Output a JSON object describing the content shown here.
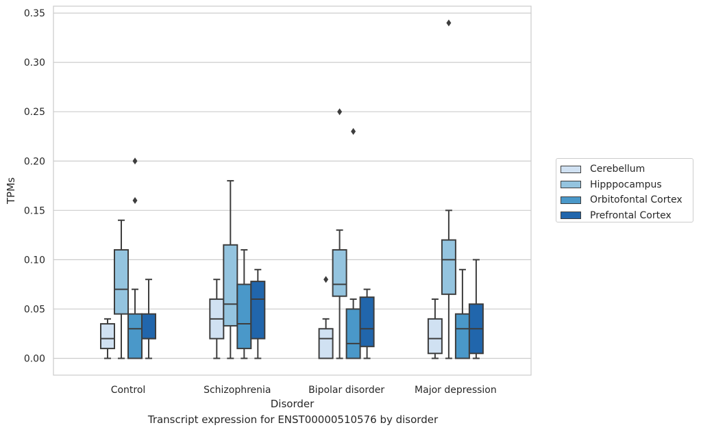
{
  "caption": "Transcript expression for ENST00000510576 by disorder",
  "chart_data": {
    "type": "box",
    "xlabel": "Disorder",
    "ylabel": "TPMs",
    "ylim": [
      -0.017,
      0.357
    ],
    "yticks": [
      "0.00",
      "0.05",
      "0.10",
      "0.15",
      "0.20",
      "0.25",
      "0.30",
      "0.35"
    ],
    "ytick_values": [
      0,
      0.05,
      0.1,
      0.15,
      0.2,
      0.25,
      0.3,
      0.35
    ],
    "grid": "horizontal",
    "legend_position": "right",
    "categories": [
      "Control",
      "Schizophrenia",
      "Bipolar disorder",
      "Major depression"
    ],
    "series": [
      {
        "name": "Cerebellum",
        "color": "#d0e1f2",
        "boxes": [
          {
            "whisker_low": 0.0,
            "q1": 0.01,
            "median": 0.02,
            "q3": 0.035,
            "whisker_high": 0.04,
            "outliers": []
          },
          {
            "whisker_low": 0.0,
            "q1": 0.02,
            "median": 0.04,
            "q3": 0.06,
            "whisker_high": 0.08,
            "outliers": []
          },
          {
            "whisker_low": 0.0,
            "q1": 0.0,
            "median": 0.02,
            "q3": 0.03,
            "whisker_high": 0.04,
            "outliers": [
              0.08
            ]
          },
          {
            "whisker_low": 0.0,
            "q1": 0.005,
            "median": 0.02,
            "q3": 0.04,
            "whisker_high": 0.06,
            "outliers": []
          }
        ]
      },
      {
        "name": "Hipppocampus",
        "color": "#94c4df",
        "boxes": [
          {
            "whisker_low": 0.0,
            "q1": 0.045,
            "median": 0.07,
            "q3": 0.11,
            "whisker_high": 0.14,
            "outliers": []
          },
          {
            "whisker_low": 0.0,
            "q1": 0.033,
            "median": 0.055,
            "q3": 0.115,
            "whisker_high": 0.18,
            "outliers": []
          },
          {
            "whisker_low": 0.0,
            "q1": 0.063,
            "median": 0.075,
            "q3": 0.11,
            "whisker_high": 0.13,
            "outliers": [
              0.25
            ]
          },
          {
            "whisker_low": 0.0,
            "q1": 0.065,
            "median": 0.1,
            "q3": 0.12,
            "whisker_high": 0.15,
            "outliers": [
              0.34
            ]
          }
        ]
      },
      {
        "name": "Orbitofontal Cortex",
        "color": "#4a98c9",
        "boxes": [
          {
            "whisker_low": 0.0,
            "q1": 0.0,
            "median": 0.03,
            "q3": 0.045,
            "whisker_high": 0.07,
            "outliers": [
              0.16,
              0.2
            ]
          },
          {
            "whisker_low": 0.0,
            "q1": 0.01,
            "median": 0.035,
            "q3": 0.075,
            "whisker_high": 0.11,
            "outliers": []
          },
          {
            "whisker_low": 0.0,
            "q1": 0.0,
            "median": 0.015,
            "q3": 0.05,
            "whisker_high": 0.06,
            "outliers": [
              0.23
            ]
          },
          {
            "whisker_low": 0.0,
            "q1": 0.0,
            "median": 0.03,
            "q3": 0.045,
            "whisker_high": 0.09,
            "outliers": []
          }
        ]
      },
      {
        "name": "Prefrontal Cortex",
        "color": "#2166ac",
        "boxes": [
          {
            "whisker_low": 0.0,
            "q1": 0.02,
            "median": 0.02,
            "q3": 0.045,
            "whisker_high": 0.08,
            "outliers": []
          },
          {
            "whisker_low": 0.0,
            "q1": 0.02,
            "median": 0.06,
            "q3": 0.078,
            "whisker_high": 0.09,
            "outliers": []
          },
          {
            "whisker_low": 0.0,
            "q1": 0.012,
            "median": 0.03,
            "q3": 0.062,
            "whisker_high": 0.07,
            "outliers": []
          },
          {
            "whisker_low": 0.0,
            "q1": 0.005,
            "median": 0.03,
            "q3": 0.055,
            "whisker_high": 0.1,
            "outliers": []
          }
        ]
      }
    ]
  }
}
